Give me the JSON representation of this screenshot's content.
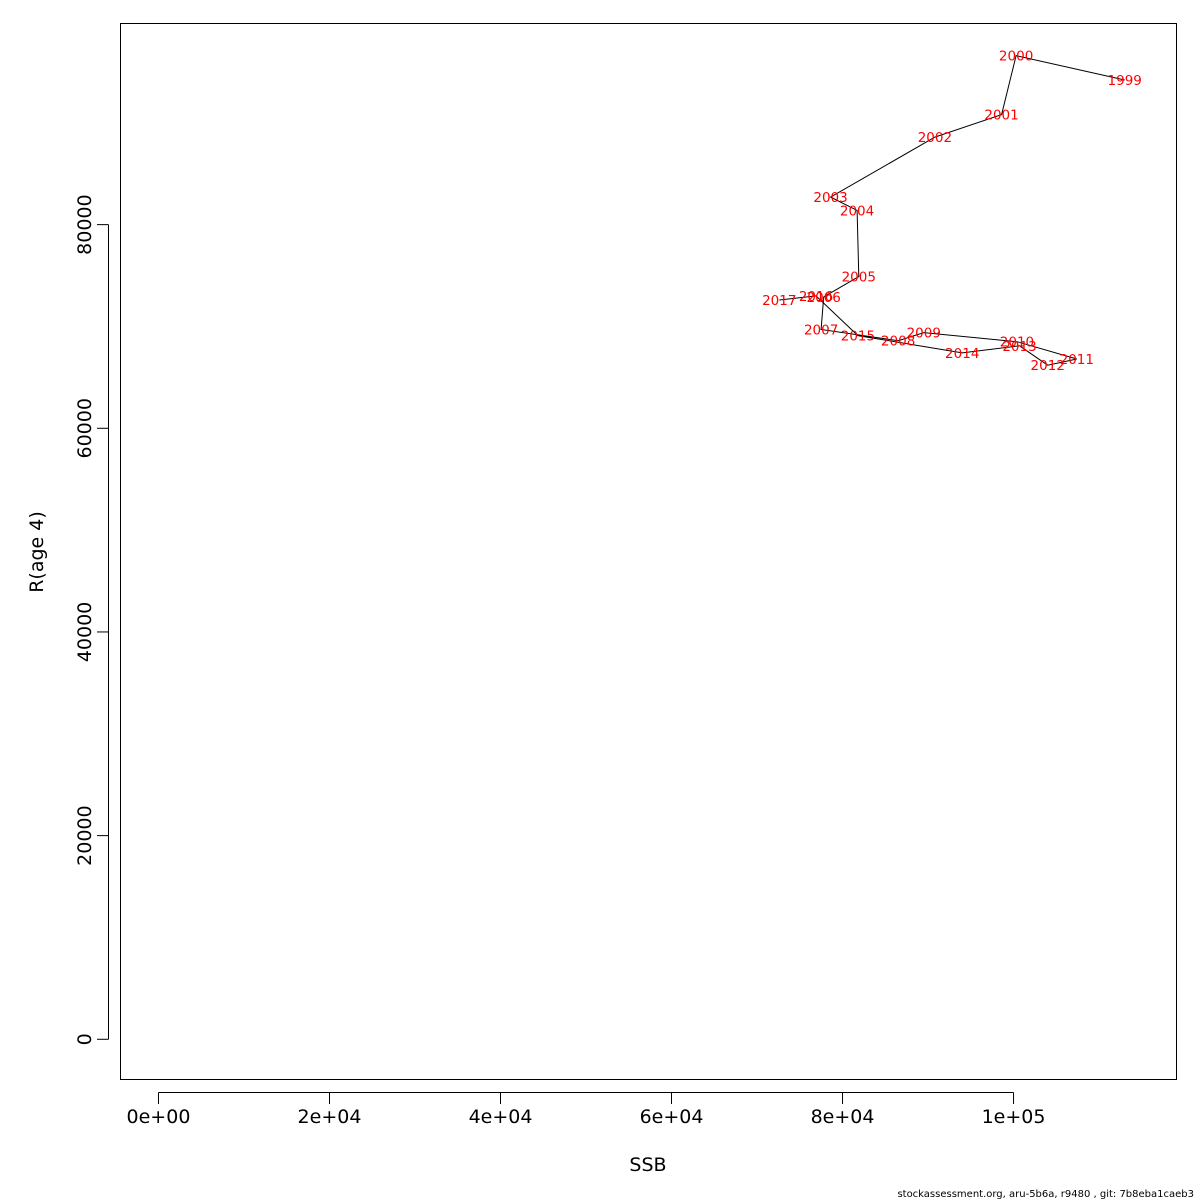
{
  "chart_data": {
    "type": "line",
    "xlabel": "SSB",
    "ylabel": "R(age 4)",
    "xlim": [
      -4500,
      119000
    ],
    "ylim": [
      -3900,
      99800
    ],
    "x_ticks": [
      {
        "value": 0,
        "label": "0e+00"
      },
      {
        "value": 20000,
        "label": "2e+04"
      },
      {
        "value": 40000,
        "label": "4e+04"
      },
      {
        "value": 60000,
        "label": "6e+04"
      },
      {
        "value": 80000,
        "label": "8e+04"
      },
      {
        "value": 100000,
        "label": "1e+05"
      }
    ],
    "y_ticks": [
      {
        "value": 0,
        "label": "0"
      },
      {
        "value": 20000,
        "label": "20000"
      },
      {
        "value": 40000,
        "label": "40000"
      },
      {
        "value": 60000,
        "label": "60000"
      },
      {
        "value": 80000,
        "label": "80000"
      }
    ],
    "label_color": "#ff0000",
    "line_color": "#000000",
    "points": [
      {
        "year": "1999",
        "ssb": 113000,
        "r": 94200
      },
      {
        "year": "2000",
        "ssb": 100300,
        "r": 96600
      },
      {
        "year": "2001",
        "ssb": 98600,
        "r": 90800
      },
      {
        "year": "2002",
        "ssb": 90800,
        "r": 88600
      },
      {
        "year": "2003",
        "ssb": 78600,
        "r": 82700
      },
      {
        "year": "2004",
        "ssb": 81700,
        "r": 81400
      },
      {
        "year": "2005",
        "ssb": 81900,
        "r": 74900
      },
      {
        "year": "2006",
        "ssb": 77800,
        "r": 72900
      },
      {
        "year": "2007",
        "ssb": 77500,
        "r": 69700
      },
      {
        "year": "2008",
        "ssb": 86500,
        "r": 68600
      },
      {
        "year": "2009",
        "ssb": 89500,
        "r": 69400
      },
      {
        "year": "2010",
        "ssb": 100400,
        "r": 68500
      },
      {
        "year": "2011",
        "ssb": 107400,
        "r": 66800
      },
      {
        "year": "2012",
        "ssb": 104000,
        "r": 66200
      },
      {
        "year": "2013",
        "ssb": 100700,
        "r": 68100
      },
      {
        "year": "2014",
        "ssb": 94000,
        "r": 67400
      },
      {
        "year": "2015",
        "ssb": 81800,
        "r": 69100
      },
      {
        "year": "2016",
        "ssb": 76900,
        "r": 73000
      },
      {
        "year": "2017",
        "ssb": 72600,
        "r": 72600
      }
    ]
  },
  "footer": {
    "text": "stockassessment.org, aru-5b6a, r9480 , git: 7b8eba1caeb3"
  }
}
